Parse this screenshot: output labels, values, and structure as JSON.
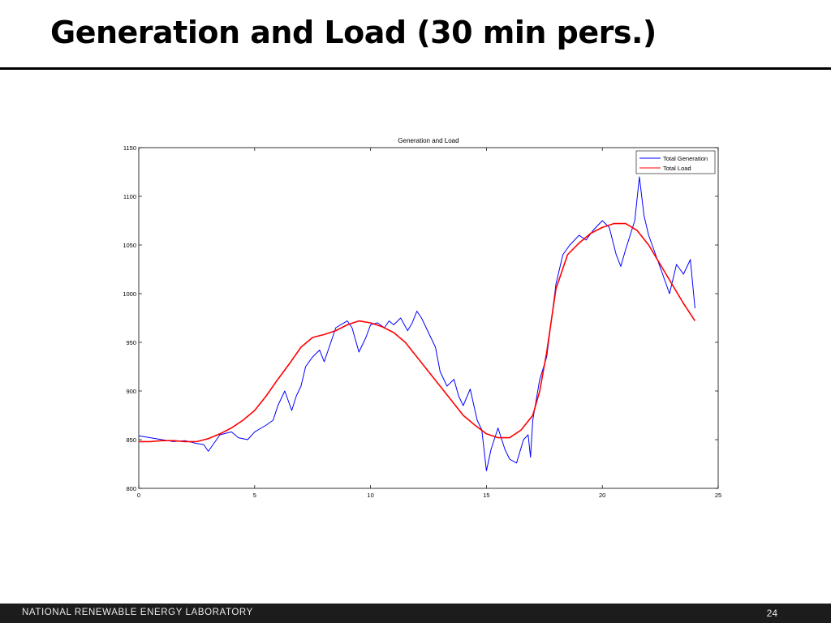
{
  "slide": {
    "title": "Generation and Load (30 min pers.)",
    "footer_org": "NATIONAL RENEWABLE ENERGY LABORATORY",
    "page_number": "24"
  },
  "colors": {
    "generation": "#0000ff",
    "load": "#ff0000",
    "footer_bg": "#1c1c1c"
  },
  "chart_data": {
    "type": "line",
    "title": "Generation and Load",
    "xlabel": "",
    "ylabel": "",
    "xlim": [
      0,
      25
    ],
    "ylim": [
      800,
      1150
    ],
    "xticks": [
      0,
      5,
      10,
      15,
      20,
      25
    ],
    "yticks": [
      800,
      850,
      900,
      950,
      1000,
      1050,
      1100,
      1150
    ],
    "grid": false,
    "legend_position": "top-right",
    "series": [
      {
        "name": "Total Generation",
        "color": "#0000ff",
        "x": [
          0,
          0.5,
          1,
          1.5,
          2,
          2.5,
          2.8,
          3,
          3.5,
          4,
          4.3,
          4.7,
          5,
          5.5,
          5.8,
          6,
          6.3,
          6.6,
          6.8,
          7,
          7.2,
          7.5,
          7.8,
          8,
          8.5,
          9,
          9.2,
          9.5,
          9.8,
          10,
          10.3,
          10.6,
          10.8,
          11,
          11.3,
          11.6,
          11.8,
          12,
          12.2,
          12.5,
          12.8,
          13,
          13.3,
          13.6,
          13.8,
          14,
          14.3,
          14.6,
          14.8,
          15,
          15.2,
          15.5,
          15.8,
          16,
          16.3,
          16.6,
          16.8,
          16.9,
          17,
          17.3,
          17.6,
          18,
          18.3,
          18.6,
          19,
          19.3,
          19.6,
          20,
          20.3,
          20.6,
          20.8,
          21,
          21.2,
          21.4,
          21.6,
          21.8,
          22,
          22.3,
          22.6,
          22.9,
          23.2,
          23.5,
          23.8,
          24
        ],
        "y": [
          854,
          852,
          850,
          848,
          849,
          846,
          845,
          838,
          855,
          858,
          852,
          850,
          858,
          865,
          870,
          885,
          900,
          880,
          895,
          905,
          925,
          935,
          942,
          930,
          965,
          972,
          965,
          940,
          955,
          968,
          970,
          965,
          972,
          968,
          975,
          962,
          970,
          982,
          975,
          960,
          945,
          920,
          905,
          912,
          895,
          885,
          902,
          870,
          860,
          818,
          840,
          862,
          840,
          830,
          826,
          850,
          855,
          832,
          870,
          912,
          935,
          1010,
          1040,
          1050,
          1060,
          1055,
          1065,
          1075,
          1068,
          1040,
          1028,
          1045,
          1060,
          1075,
          1120,
          1080,
          1060,
          1040,
          1020,
          1000,
          1030,
          1020,
          1035,
          985
        ],
        "values": [
          854,
          852,
          850,
          848,
          849,
          846,
          845,
          838,
          855,
          858,
          852,
          850,
          858,
          865,
          870,
          885,
          900,
          880,
          895,
          905,
          925,
          935,
          942,
          930,
          965,
          972,
          965,
          940,
          955,
          968,
          970,
          965,
          972,
          968,
          975,
          962,
          970,
          982,
          975,
          960,
          945,
          920,
          905,
          912,
          895,
          885,
          902,
          870,
          860,
          818,
          840,
          862,
          840,
          830,
          826,
          850,
          855,
          832,
          870,
          912,
          935,
          1010,
          1040,
          1050,
          1060,
          1055,
          1065,
          1075,
          1068,
          1040,
          1028,
          1045,
          1060,
          1075,
          1120,
          1080,
          1060,
          1040,
          1020,
          1000,
          1030,
          1020,
          1035,
          985
        ]
      },
      {
        "name": "Total Load",
        "color": "#ff0000",
        "x": [
          0,
          0.5,
          1,
          1.5,
          2,
          2.5,
          3,
          3.5,
          4,
          4.5,
          5,
          5.5,
          6,
          6.5,
          7,
          7.5,
          8,
          8.5,
          9,
          9.5,
          10,
          10.5,
          11,
          11.5,
          12,
          12.5,
          13,
          13.5,
          14,
          14.5,
          15,
          15.5,
          16,
          16.5,
          17,
          17.3,
          17.6,
          18,
          18.5,
          19,
          19.5,
          20,
          20.5,
          21,
          21.5,
          22,
          22.5,
          23,
          23.5,
          24
        ],
        "y": [
          848,
          848,
          849,
          849,
          848,
          848,
          851,
          856,
          862,
          870,
          880,
          895,
          912,
          928,
          945,
          955,
          958,
          962,
          968,
          972,
          970,
          966,
          960,
          950,
          935,
          920,
          905,
          890,
          875,
          865,
          856,
          852,
          852,
          860,
          875,
          900,
          940,
          1005,
          1040,
          1052,
          1062,
          1068,
          1072,
          1072,
          1065,
          1050,
          1030,
          1010,
          990,
          972
        ],
        "values": [
          848,
          848,
          849,
          849,
          848,
          848,
          851,
          856,
          862,
          870,
          880,
          895,
          912,
          928,
          945,
          955,
          958,
          962,
          968,
          972,
          970,
          966,
          960,
          950,
          935,
          920,
          905,
          890,
          875,
          865,
          856,
          852,
          852,
          860,
          875,
          900,
          940,
          1005,
          1040,
          1052,
          1062,
          1068,
          1072,
          1072,
          1065,
          1050,
          1030,
          1010,
          990,
          972
        ]
      }
    ]
  }
}
